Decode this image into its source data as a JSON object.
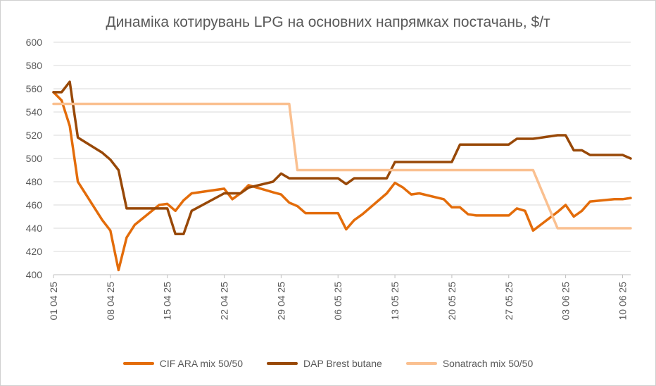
{
  "chart_data": {
    "type": "line",
    "title": "Динаміка котирувань LPG на основних напрямках постачань, $/т",
    "xlabel": "",
    "ylabel": "",
    "ylim": [
      400,
      600
    ],
    "yticks": [
      "400",
      "420",
      "440",
      "460",
      "480",
      "500",
      "520",
      "540",
      "560",
      "580",
      "600"
    ],
    "x_range": [
      "2025-04-01",
      "2025-06-11"
    ],
    "xticks": [
      {
        "date": "2025-04-01",
        "label": "01 04 25"
      },
      {
        "date": "2025-04-08",
        "label": "08 04 25"
      },
      {
        "date": "2025-04-15",
        "label": "15 04 25"
      },
      {
        "date": "2025-04-22",
        "label": "22 04 25"
      },
      {
        "date": "2025-04-29",
        "label": "29 04 25"
      },
      {
        "date": "2025-05-06",
        "label": "06 05 25"
      },
      {
        "date": "2025-05-13",
        "label": "13 05 25"
      },
      {
        "date": "2025-05-20",
        "label": "20 05 25"
      },
      {
        "date": "2025-05-27",
        "label": "27 05 25"
      },
      {
        "date": "2025-06-03",
        "label": "03 06 25"
      },
      {
        "date": "2025-06-10",
        "label": "10 06 25"
      }
    ],
    "grid": true,
    "legend_position": "bottom",
    "series": [
      {
        "name": "CIF ARA mix 50/50",
        "color": "#E36C0A",
        "points": [
          [
            "2025-04-01",
            557
          ],
          [
            "2025-04-02",
            550
          ],
          [
            "2025-04-03",
            528
          ],
          [
            "2025-04-04",
            480
          ],
          [
            "2025-04-07",
            447
          ],
          [
            "2025-04-08",
            438
          ],
          [
            "2025-04-09",
            404
          ],
          [
            "2025-04-10",
            432
          ],
          [
            "2025-04-11",
            443
          ],
          [
            "2025-04-14",
            460
          ],
          [
            "2025-04-15",
            461
          ],
          [
            "2025-04-16",
            455
          ],
          [
            "2025-04-17",
            464
          ],
          [
            "2025-04-18",
            470
          ],
          [
            "2025-04-22",
            474
          ],
          [
            "2025-04-23",
            465
          ],
          [
            "2025-04-24",
            470
          ],
          [
            "2025-04-25",
            477
          ],
          [
            "2025-04-28",
            471
          ],
          [
            "2025-04-29",
            469
          ],
          [
            "2025-04-30",
            462
          ],
          [
            "2025-05-01",
            459
          ],
          [
            "2025-05-02",
            453
          ],
          [
            "2025-05-05",
            453
          ],
          [
            "2025-05-06",
            453
          ],
          [
            "2025-05-07",
            439
          ],
          [
            "2025-05-08",
            447
          ],
          [
            "2025-05-09",
            452
          ],
          [
            "2025-05-12",
            470
          ],
          [
            "2025-05-13",
            479
          ],
          [
            "2025-05-14",
            475
          ],
          [
            "2025-05-15",
            469
          ],
          [
            "2025-05-16",
            470
          ],
          [
            "2025-05-19",
            465
          ],
          [
            "2025-05-20",
            458
          ],
          [
            "2025-05-21",
            458
          ],
          [
            "2025-05-22",
            452
          ],
          [
            "2025-05-23",
            451
          ],
          [
            "2025-05-26",
            451
          ],
          [
            "2025-05-27",
            451
          ],
          [
            "2025-05-28",
            457
          ],
          [
            "2025-05-29",
            455
          ],
          [
            "2025-05-30",
            438
          ],
          [
            "2025-06-02",
            454
          ],
          [
            "2025-06-03",
            460
          ],
          [
            "2025-06-04",
            450
          ],
          [
            "2025-06-05",
            455
          ],
          [
            "2025-06-06",
            463
          ],
          [
            "2025-06-09",
            465
          ],
          [
            "2025-06-10",
            465
          ],
          [
            "2025-06-11",
            466
          ]
        ]
      },
      {
        "name": "DAP Brest butane",
        "color": "#984807",
        "points": [
          [
            "2025-04-01",
            557
          ],
          [
            "2025-04-02",
            557
          ],
          [
            "2025-04-03",
            566
          ],
          [
            "2025-04-04",
            518
          ],
          [
            "2025-04-07",
            505
          ],
          [
            "2025-04-08",
            499
          ],
          [
            "2025-04-09",
            490
          ],
          [
            "2025-04-10",
            457
          ],
          [
            "2025-04-11",
            457
          ],
          [
            "2025-04-14",
            457
          ],
          [
            "2025-04-15",
            457
          ],
          [
            "2025-04-16",
            435
          ],
          [
            "2025-04-17",
            435
          ],
          [
            "2025-04-18",
            455
          ],
          [
            "2025-04-22",
            470
          ],
          [
            "2025-04-23",
            470
          ],
          [
            "2025-04-24",
            470
          ],
          [
            "2025-04-25",
            475
          ],
          [
            "2025-04-28",
            480
          ],
          [
            "2025-04-29",
            487
          ],
          [
            "2025-04-30",
            483
          ],
          [
            "2025-05-01",
            483
          ],
          [
            "2025-05-02",
            483
          ],
          [
            "2025-05-05",
            483
          ],
          [
            "2025-05-06",
            483
          ],
          [
            "2025-05-07",
            478
          ],
          [
            "2025-05-08",
            483
          ],
          [
            "2025-05-09",
            483
          ],
          [
            "2025-05-12",
            483
          ],
          [
            "2025-05-13",
            497
          ],
          [
            "2025-05-14",
            497
          ],
          [
            "2025-05-15",
            497
          ],
          [
            "2025-05-16",
            497
          ],
          [
            "2025-05-19",
            497
          ],
          [
            "2025-05-20",
            497
          ],
          [
            "2025-05-21",
            512
          ],
          [
            "2025-05-22",
            512
          ],
          [
            "2025-05-23",
            512
          ],
          [
            "2025-05-26",
            512
          ],
          [
            "2025-05-27",
            512
          ],
          [
            "2025-05-28",
            517
          ],
          [
            "2025-05-29",
            517
          ],
          [
            "2025-05-30",
            517
          ],
          [
            "2025-06-02",
            520
          ],
          [
            "2025-06-03",
            520
          ],
          [
            "2025-06-04",
            507
          ],
          [
            "2025-06-05",
            507
          ],
          [
            "2025-06-06",
            503
          ],
          [
            "2025-06-09",
            503
          ],
          [
            "2025-06-10",
            503
          ],
          [
            "2025-06-11",
            500
          ]
        ]
      },
      {
        "name": "Sonatrach mix 50/50",
        "color": "#FAC090",
        "points": [
          [
            "2025-04-01",
            547
          ],
          [
            "2025-04-30",
            547
          ],
          [
            "2025-05-01",
            490
          ],
          [
            "2025-05-29",
            490
          ],
          [
            "2025-05-30",
            490
          ],
          [
            "2025-06-02",
            440
          ],
          [
            "2025-06-11",
            440
          ]
        ]
      }
    ]
  }
}
